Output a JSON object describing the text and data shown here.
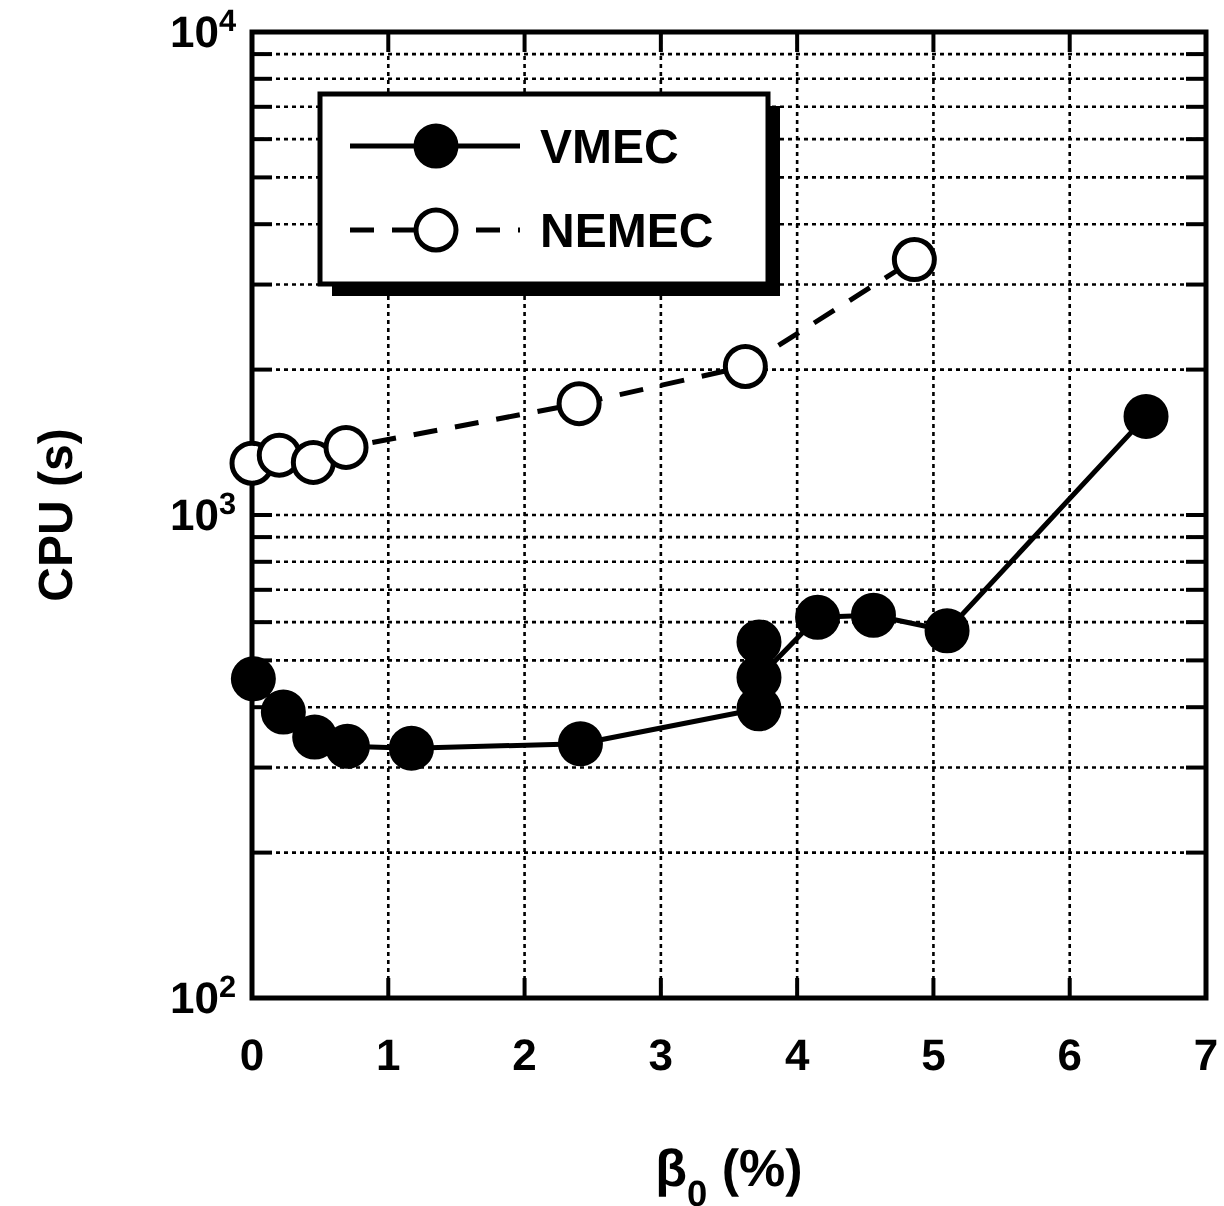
{
  "chart_data": {
    "type": "line",
    "xlabel": "β$_{0}$ (%)",
    "ylabel": "CPU (s)",
    "log": "y",
    "grid": true,
    "legend": "top left",
    "marker": "circle",
    "xlim": [
      0,
      7
    ],
    "xticks": [
      0,
      1,
      2,
      3,
      4,
      5,
      6,
      7
    ],
    "ylim": [
      100,
      10000
    ],
    "yticks": [
      {
        "value": 100,
        "label": "10$^{2}$"
      },
      {
        "value": 200,
        "label": null
      },
      {
        "value": 300,
        "label": null
      },
      {
        "value": 400,
        "label": null
      },
      {
        "value": 500,
        "label": null
      },
      {
        "value": 600,
        "label": null
      },
      {
        "value": 700,
        "label": null
      },
      {
        "value": 800,
        "label": null
      },
      {
        "value": 900,
        "label": null
      },
      {
        "value": 1000,
        "label": "10$^{3}$"
      },
      {
        "value": 2000,
        "label": null
      },
      {
        "value": 3000,
        "label": null
      },
      {
        "value": 4000,
        "label": null
      },
      {
        "value": 5000,
        "label": null
      },
      {
        "value": 6000,
        "label": null
      },
      {
        "value": 7000,
        "label": null
      },
      {
        "value": 8000,
        "label": null
      },
      {
        "value": 9000,
        "label": null
      },
      {
        "value": 10000,
        "label": "10$^{4}$"
      }
    ],
    "series": [
      {
        "name": "VMEC",
        "color": "#000000",
        "line_style": "solid",
        "x": [
          0.01,
          0.23,
          0.46,
          0.7,
          1.17,
          2.41,
          3.72,
          3.72,
          3.72,
          4.15,
          4.56,
          5.1,
          6.56
        ],
        "values": [
          458,
          391,
          347,
          332,
          329,
          336,
          397,
          546,
          461,
          614,
          620,
          576,
          1600
        ]
      },
      {
        "name": "NEMEC",
        "color": "#000000",
        "line_style": "dashed",
        "x": [
          0,
          0.2,
          0.45,
          0.69,
          2.4,
          3.62,
          4.86
        ],
        "values": [
          1280,
          1330,
          1285,
          1380,
          1700,
          2030,
          3380
        ]
      }
    ]
  }
}
